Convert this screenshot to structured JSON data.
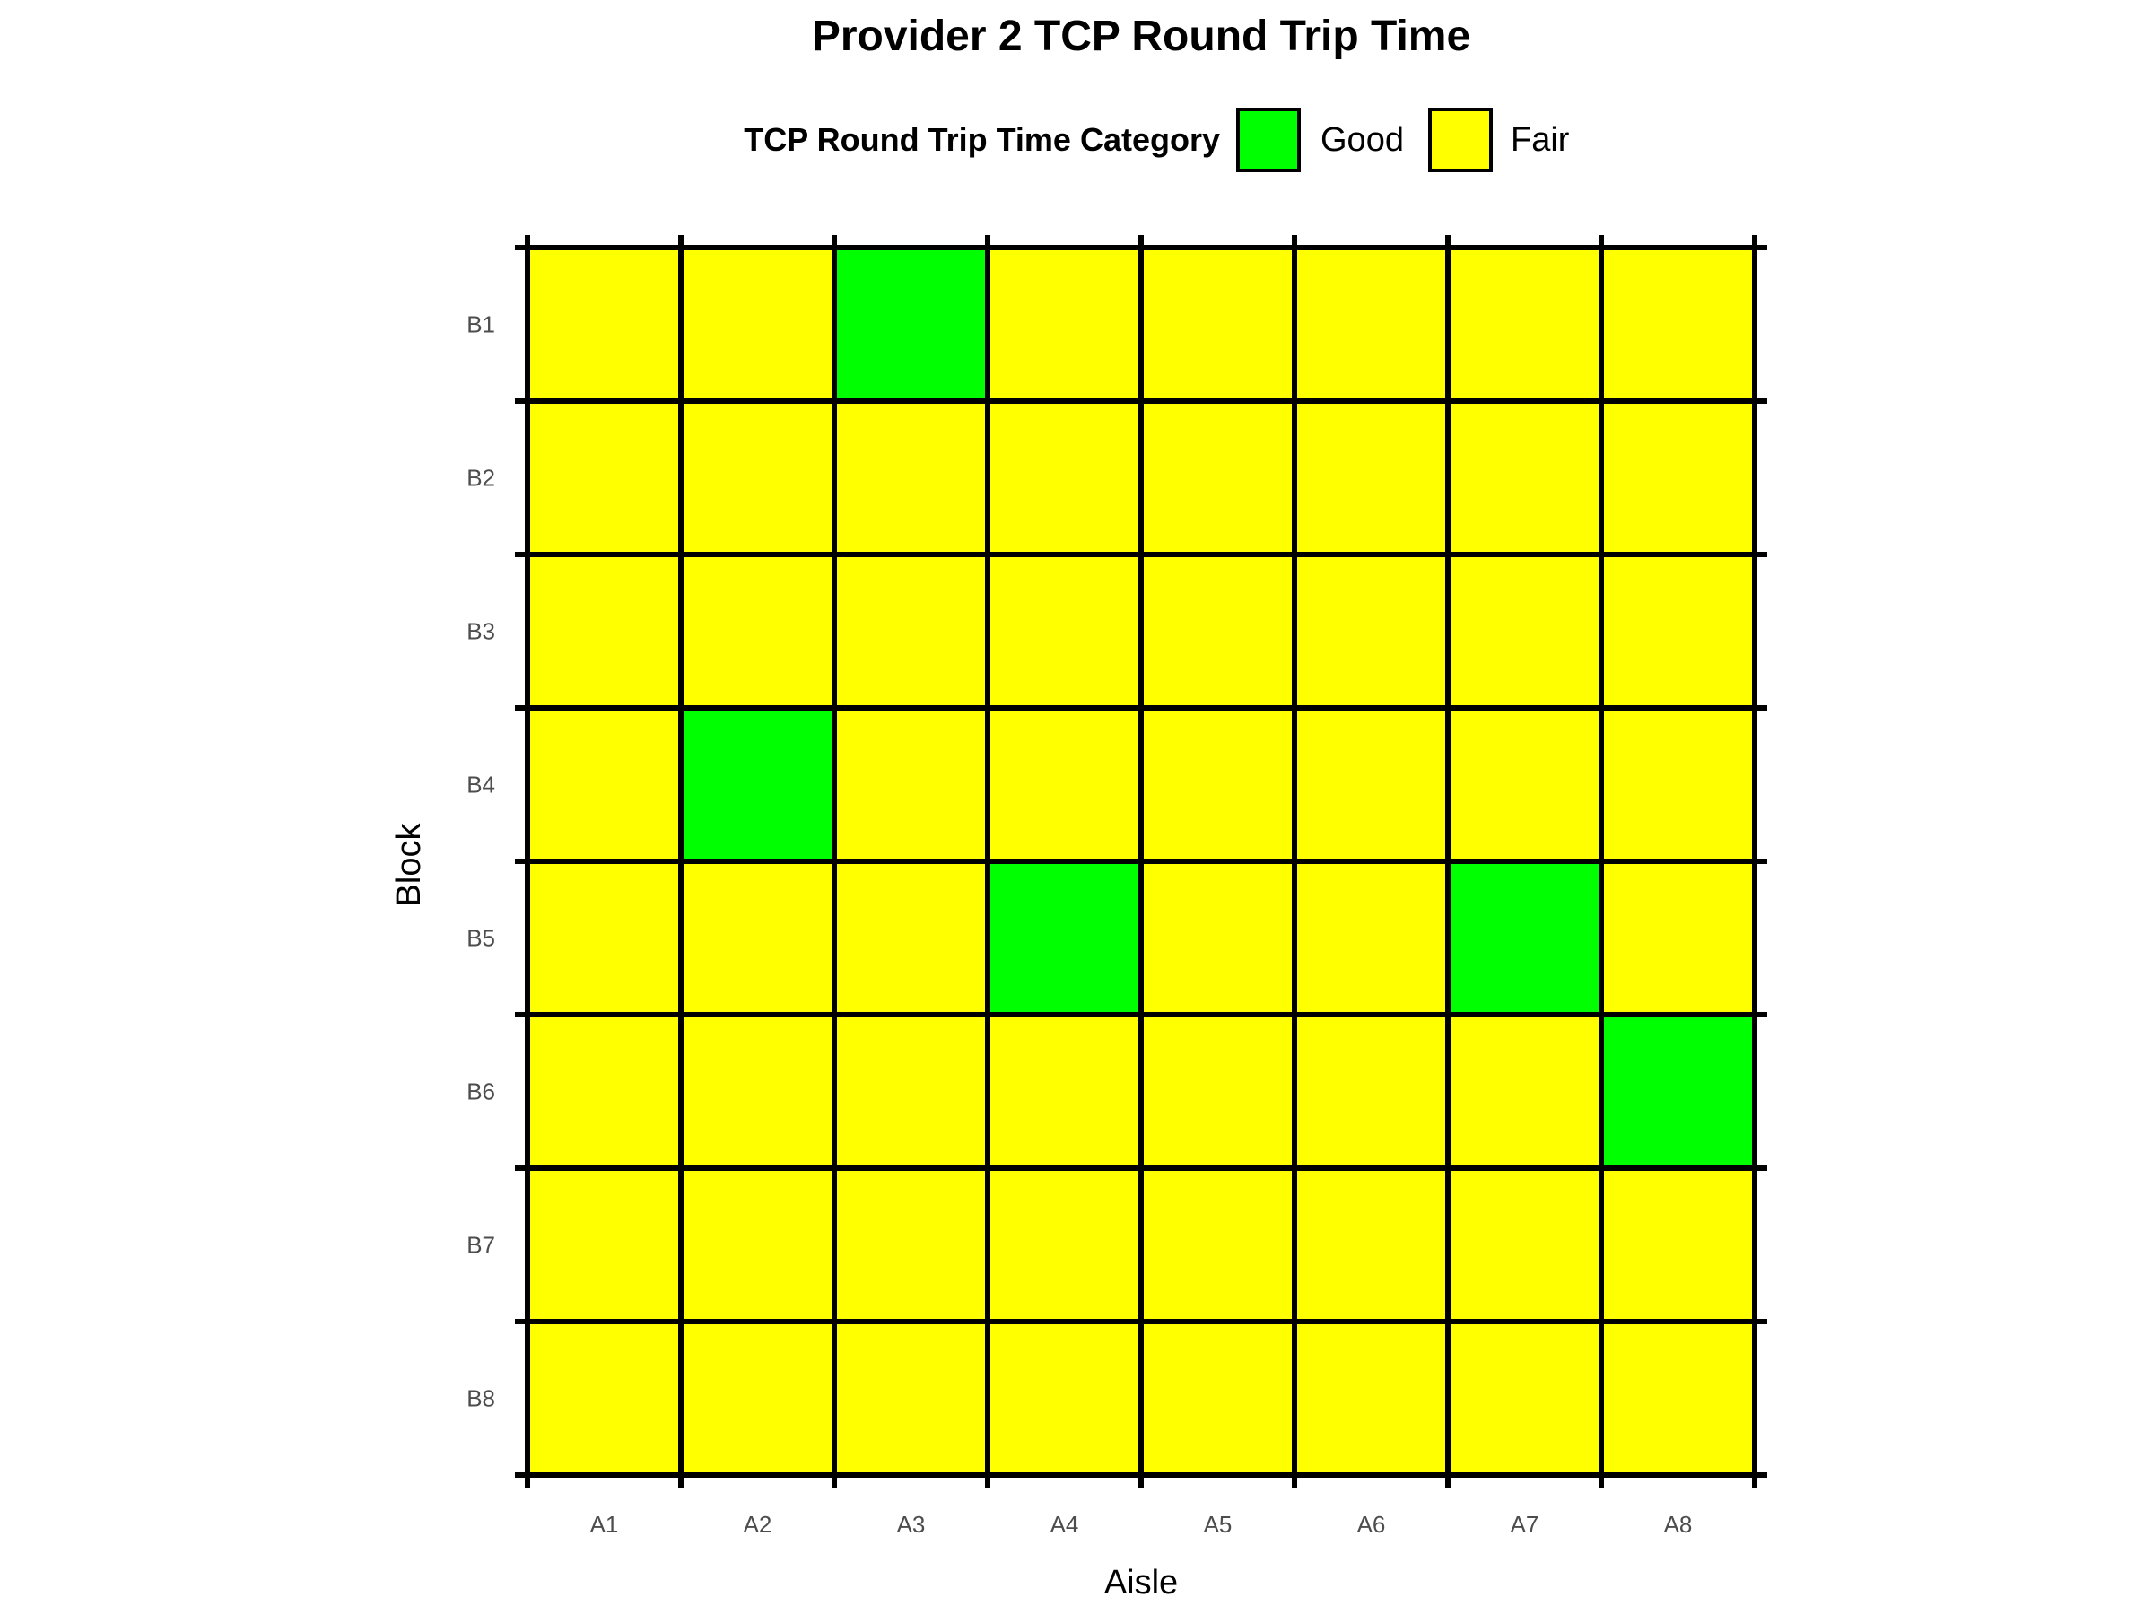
{
  "chart_data": {
    "type": "heatmap",
    "title": "Provider 2 TCP Round Trip Time",
    "xlabel": "Aisle",
    "ylabel": "Block",
    "x_categories": [
      "A1",
      "A2",
      "A3",
      "A4",
      "A5",
      "A6",
      "A7",
      "A8"
    ],
    "y_categories": [
      "B1",
      "B2",
      "B3",
      "B4",
      "B5",
      "B6",
      "B7",
      "B8"
    ],
    "legend": {
      "title": "TCP Round Trip Time Category",
      "position": "top",
      "entries": [
        {
          "label": "Good",
          "color": "#00ff00"
        },
        {
          "label": "Fair",
          "color": "#ffff00"
        }
      ]
    },
    "values": [
      [
        "Fair",
        "Fair",
        "Good",
        "Fair",
        "Fair",
        "Fair",
        "Fair",
        "Fair"
      ],
      [
        "Fair",
        "Fair",
        "Fair",
        "Fair",
        "Fair",
        "Fair",
        "Fair",
        "Fair"
      ],
      [
        "Fair",
        "Fair",
        "Fair",
        "Fair",
        "Fair",
        "Fair",
        "Fair",
        "Fair"
      ],
      [
        "Fair",
        "Good",
        "Fair",
        "Fair",
        "Fair",
        "Fair",
        "Fair",
        "Fair"
      ],
      [
        "Fair",
        "Fair",
        "Fair",
        "Good",
        "Fair",
        "Fair",
        "Good",
        "Fair"
      ],
      [
        "Fair",
        "Fair",
        "Fair",
        "Fair",
        "Fair",
        "Fair",
        "Fair",
        "Good"
      ],
      [
        "Fair",
        "Fair",
        "Fair",
        "Fair",
        "Fair",
        "Fair",
        "Fair",
        "Fair"
      ],
      [
        "Fair",
        "Fair",
        "Fair",
        "Fair",
        "Fair",
        "Fair",
        "Fair",
        "Fair"
      ]
    ],
    "grid": true
  }
}
